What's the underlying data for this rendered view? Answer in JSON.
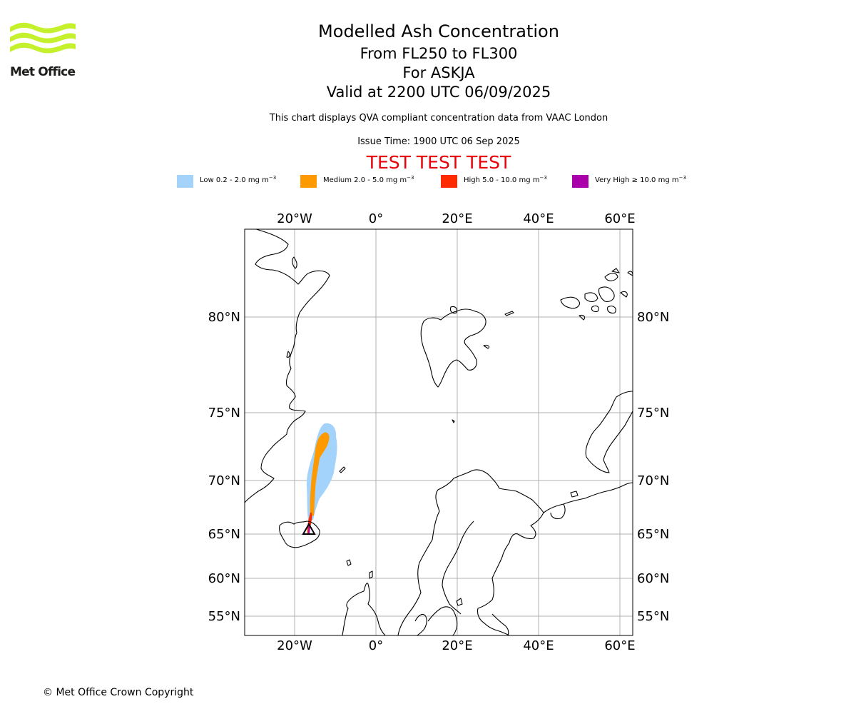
{
  "header": {
    "logo_text": "Met Office",
    "title": "Modelled Ash Concentration",
    "flight_levels": "From FL250 to FL300",
    "volcano": "For ASKJA",
    "valid_time": "Valid at 2200 UTC 06/09/2025",
    "description": "This chart displays QVA compliant concentration data from VAAC London",
    "issue_time": "Issue Time: 1900 UTC 06 Sep 2025",
    "test_banner": "TEST TEST TEST"
  },
  "legend": [
    {
      "label": "Low 0.2 - 2.0 mg m",
      "exp": "−3",
      "color": "#a3d3fb"
    },
    {
      "label": "Medium 2.0 - 5.0 mg m",
      "exp": "−3",
      "color": "#ff9900"
    },
    {
      "label": "High 5.0 - 10.0 mg m",
      "exp": "−3",
      "color": "#ff2a00"
    },
    {
      "label": "Very High  ≥  10.0 mg m",
      "exp": "−3",
      "color": "#aa00aa"
    }
  ],
  "map": {
    "lon_labels": [
      "20°W",
      "0°",
      "20°E",
      "40°E",
      "60°E"
    ],
    "lat_labels": [
      "80°N",
      "75°N",
      "70°N",
      "65°N",
      "60°N",
      "55°N"
    ],
    "grid": true,
    "coastline_color": "#000000",
    "grid_color": "#b0b0b0"
  },
  "footer": {
    "copyright": "© Met Office Crown Copyright"
  }
}
